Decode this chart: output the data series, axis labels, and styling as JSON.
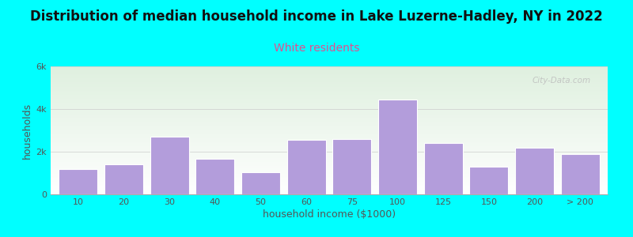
{
  "title": "Distribution of median household income in Lake Luzerne-Hadley, NY in 2022",
  "subtitle": "White residents",
  "xlabel": "household income ($1000)",
  "ylabel": "households",
  "background_color": "#00FFFF",
  "plot_bg_top": "#dff0df",
  "plot_bg_bottom": "#ffffff",
  "bar_color": "#b39ddb",
  "bar_edge_color": "#ffffff",
  "categories": [
    "10",
    "20",
    "30",
    "40",
    "50",
    "60",
    "75",
    "100",
    "125",
    "150",
    "200",
    "> 200"
  ],
  "values": [
    1200,
    1400,
    2700,
    1650,
    1050,
    2550,
    2600,
    4450,
    2400,
    1300,
    2200,
    1900
  ],
  "ylim": [
    0,
    6000
  ],
  "yticks": [
    0,
    2000,
    4000,
    6000
  ],
  "ytick_labels": [
    "0",
    "2k",
    "4k",
    "6k"
  ],
  "title_fontsize": 12,
  "subtitle_fontsize": 10,
  "subtitle_color": "#e05090",
  "axis_label_fontsize": 9,
  "tick_fontsize": 8,
  "title_color": "#111111",
  "tick_color": "#555555",
  "watermark_text": "City-Data.com"
}
